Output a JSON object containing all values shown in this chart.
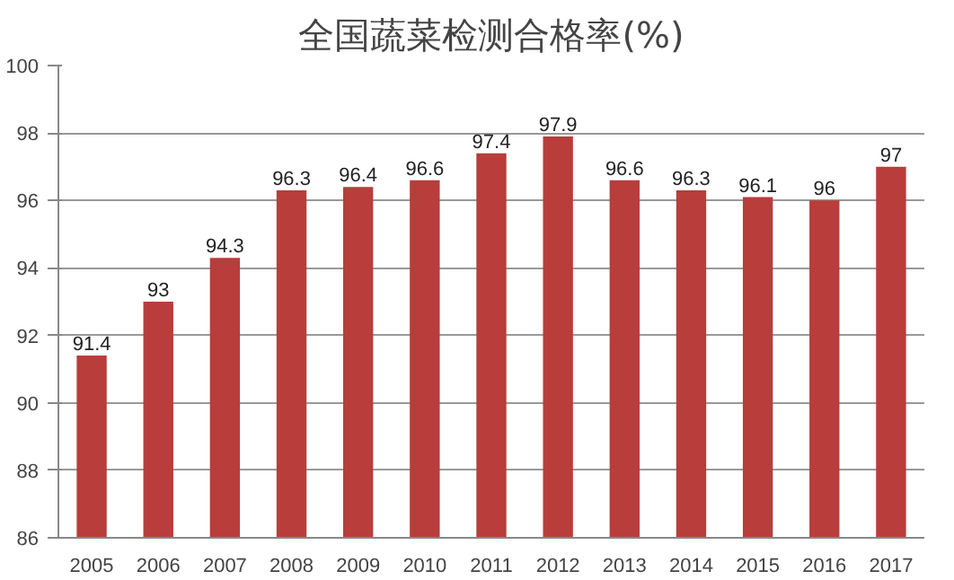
{
  "chart_data": {
    "type": "bar",
    "title": "全国蔬菜检测合格率(%)",
    "categories": [
      "2005",
      "2006",
      "2007",
      "2008",
      "2009",
      "2010",
      "2011",
      "2012",
      "2013",
      "2014",
      "2015",
      "2016",
      "2017"
    ],
    "values": [
      91.4,
      93,
      94.3,
      96.3,
      96.4,
      96.6,
      97.4,
      97.9,
      96.6,
      96.3,
      96.1,
      96,
      97
    ],
    "color": "#b83d3b",
    "ylim": [
      86,
      100
    ],
    "yticks": [
      86,
      88,
      90,
      92,
      94,
      96,
      98,
      100
    ],
    "grid": "y",
    "data_labels": true
  }
}
